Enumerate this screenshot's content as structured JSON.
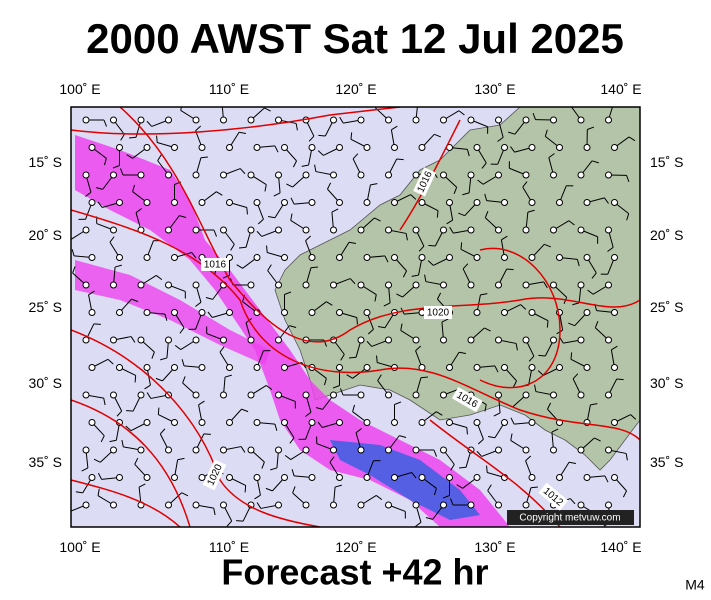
{
  "header": {
    "title": "2000 AWST Sat 12 Jul 2025"
  },
  "map": {
    "lon_labels": [
      "100˚ E",
      "110˚ E",
      "120˚ E",
      "130˚ E",
      "140˚ E"
    ],
    "lat_labels": [
      "15˚ S",
      "20˚ S",
      "25˚ S",
      "30˚ S",
      "35˚ S"
    ],
    "isobar_labels": [
      "1016",
      "1016",
      "1020",
      "1016",
      "1020",
      "1012"
    ],
    "copyright": "Copyright metvuw.com"
  },
  "footer": {
    "forecast": "Forecast +42 hr",
    "model": "M4"
  }
}
